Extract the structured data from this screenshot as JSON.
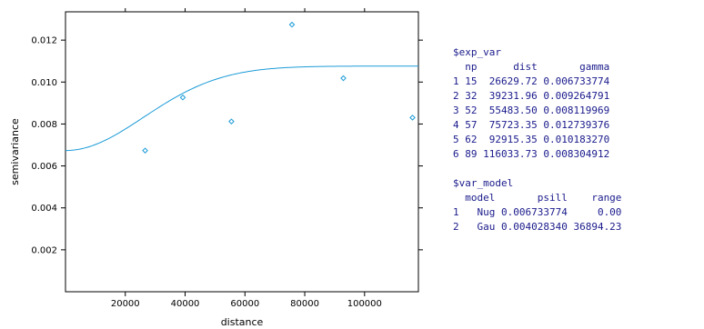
{
  "chart_data": {
    "type": "scatter",
    "xlabel": "distance",
    "ylabel": "semivariance",
    "xlim": [
      0,
      118000
    ],
    "ylim": [
      0,
      0.01335
    ],
    "x_ticks": [
      20000,
      40000,
      60000,
      80000,
      100000
    ],
    "x_tick_labels": [
      "20000",
      "40000",
      "60000",
      "80000",
      "100000"
    ],
    "y_ticks": [
      0.002,
      0.004,
      0.006,
      0.008,
      0.01,
      0.012
    ],
    "y_tick_labels": [
      "0.002",
      "0.004",
      "0.006",
      "0.008",
      "0.010",
      "0.012"
    ],
    "grid": false,
    "series": [
      {
        "kind": "points",
        "x": [
          26629.72,
          39231.96,
          55483.5,
          75723.35,
          92915.35,
          116033.73
        ],
        "y": [
          0.006733774,
          0.009264791,
          0.008119969,
          0.012739376,
          0.01018327,
          0.008304912
        ],
        "color": "#1c9bd8"
      },
      {
        "kind": "model-line",
        "model": "Nug + Gau",
        "nugget": 0.006733774,
        "psill": 0.00402834,
        "range": 36894.23,
        "color": "#1c9bd8"
      }
    ]
  },
  "console": {
    "lines": [
      "$exp_var",
      "  np      dist       gamma",
      "1 15  26629.72 0.006733774",
      "2 32  39231.96 0.009264791",
      "3 52  55483.50 0.008119969",
      "4 57  75723.35 0.012739376",
      "5 62  92915.35 0.010183270",
      "6 89 116033.73 0.008304912",
      "",
      "$var_model",
      "  model       psill    range",
      "1   Nug 0.006733774     0.00",
      "2   Gau 0.004028340 36894.23"
    ]
  }
}
